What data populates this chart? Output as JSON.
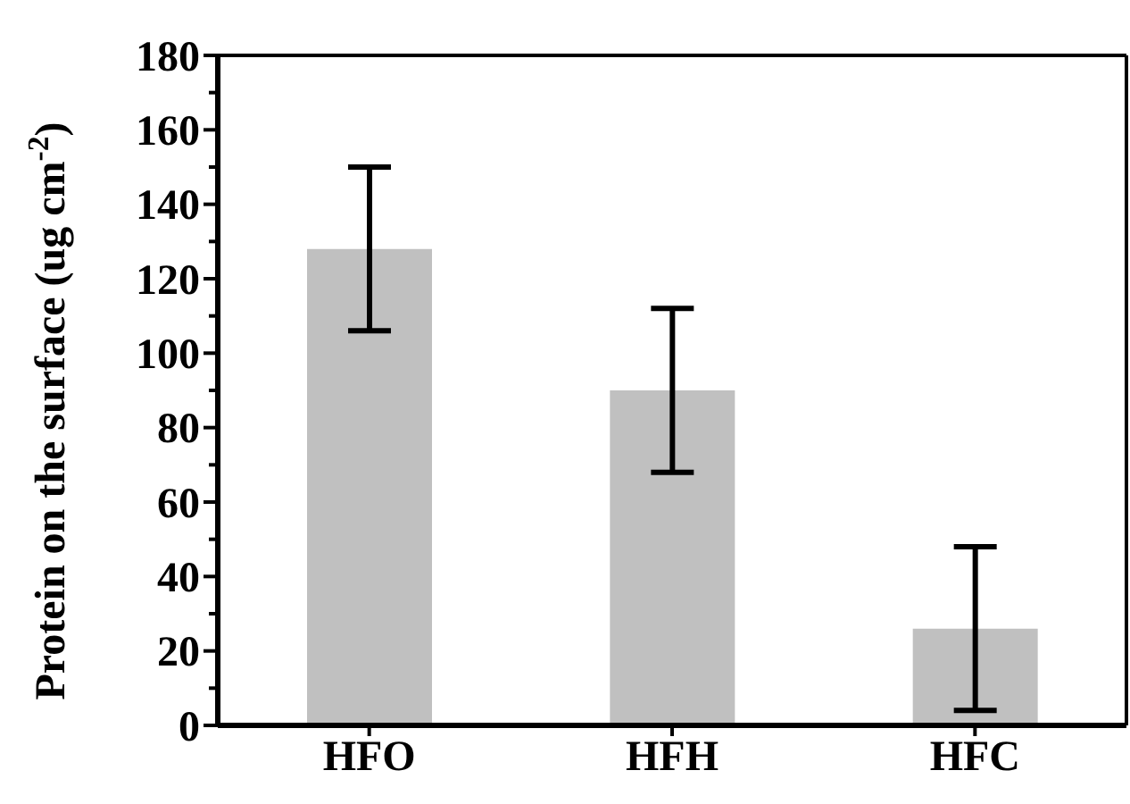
{
  "chart_data": {
    "type": "bar",
    "ylabel": "Protein on the surface (ug cm$^{-2}$)",
    "categories": [
      "HFO",
      "HFH",
      "HFC"
    ],
    "series": [
      {
        "color": "#c0c0c0",
        "values": [
          128,
          90,
          26
        ],
        "errors": [
          22,
          22,
          22
        ]
      }
    ],
    "ylim": [
      0,
      180
    ],
    "yticks": [
      0,
      {
        "value": 10,
        "label": null
      },
      20,
      {
        "value": 30,
        "label": null
      },
      40,
      {
        "value": 50,
        "label": null
      },
      60,
      {
        "value": 70,
        "label": null
      },
      80,
      {
        "value": 90,
        "label": null
      },
      100,
      {
        "value": 110,
        "label": null
      },
      120,
      {
        "value": 130,
        "label": null
      },
      140,
      {
        "value": 150,
        "label": null
      },
      160,
      {
        "value": 170,
        "label": null
      },
      180
    ],
    "grid": false,
    "legend": false
  }
}
